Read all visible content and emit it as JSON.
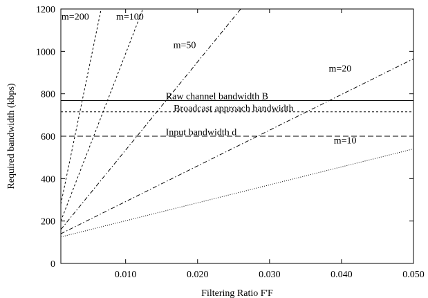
{
  "chart_data": {
    "type": "line",
    "title": "",
    "xlabel": "Filtering Ratio F'F",
    "ylabel": "Required bandwidth (kbps)",
    "xlim": [
      0.001,
      0.05
    ],
    "ylim": [
      0,
      1200
    ],
    "xticks": [
      0.01,
      0.02,
      0.03,
      0.04,
      0.05
    ],
    "xtick_labels": [
      "0.010",
      "0.020",
      "0.030",
      "0.040",
      "0.050"
    ],
    "yticks": [
      0,
      200,
      400,
      600,
      800,
      1000,
      1200
    ],
    "ytick_labels": [
      "0",
      "200",
      "400",
      "600",
      "800",
      "1000",
      "1200"
    ],
    "grid": false,
    "legend": "none",
    "series": [
      {
        "label": "m=200",
        "style": "short-dash",
        "points": [
          [
            0.001,
            280
          ],
          [
            0.0066,
            1200
          ]
        ]
      },
      {
        "label": "m=100",
        "style": "short-dash",
        "points": [
          [
            0.001,
            200
          ],
          [
            0.0124,
            1200
          ]
        ]
      },
      {
        "label": "m=50",
        "style": "dash-dot",
        "points": [
          [
            0.001,
            160
          ],
          [
            0.026,
            1200
          ]
        ]
      },
      {
        "label": "m=20",
        "style": "dash-dot",
        "points": [
          [
            0.001,
            140
          ],
          [
            0.05,
            965
          ]
        ]
      },
      {
        "label": "m=10",
        "style": "dotted",
        "points": [
          [
            0.001,
            125
          ],
          [
            0.05,
            540
          ]
        ]
      }
    ],
    "reference_lines": [
      {
        "label": "Raw channel bandwidth B",
        "y": 768,
        "style": "solid"
      },
      {
        "label": "Broadcast approach bandwidth",
        "y": 715,
        "style": "short-dash"
      },
      {
        "label": "Input bandwidth d",
        "y": 600,
        "style": "long-dash"
      }
    ],
    "annotations": [
      {
        "text": "m=200",
        "x": 0.003,
        "y": 1150
      },
      {
        "text": "m=100",
        "x": 0.0106,
        "y": 1150
      },
      {
        "text": "m=50",
        "x": 0.0182,
        "y": 1015
      },
      {
        "text": "m=20",
        "x": 0.0398,
        "y": 905
      },
      {
        "text": "m=10",
        "x": 0.0405,
        "y": 565
      },
      {
        "text": "Raw channel bandwidth B",
        "x": 0.0227,
        "y": 775
      },
      {
        "text": "Broadcast approach bandwidth",
        "x": 0.025,
        "y": 717
      },
      {
        "text": "Input bandwidth d",
        "x": 0.0205,
        "y": 605
      }
    ]
  }
}
